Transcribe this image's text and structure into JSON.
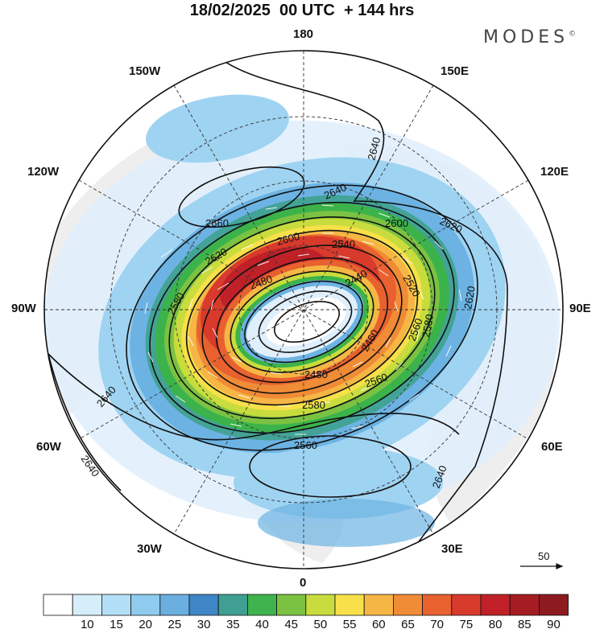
{
  "header": {
    "title": "18/02/2025  00 UTC  + 144 hrs",
    "brand": "MODES",
    "brand_mark": "©"
  },
  "map": {
    "projection": "north polar stereographic",
    "longitude_labels": {
      "top": "180",
      "bottom": "0",
      "left": "90W",
      "right": "90E",
      "upper_left_1": "150W",
      "upper_left_2": "120W",
      "upper_right_1": "150E",
      "upper_right_2": "120E",
      "lower_left_1": "60W",
      "lower_left_2": "30W",
      "lower_right_1": "60E",
      "lower_right_2": "30E"
    },
    "contour_labels": [
      "2640",
      "2660",
      "2640",
      "2620",
      "2600",
      "2620",
      "2540",
      "2580",
      "2600",
      "2440",
      "2520",
      "2480",
      "2620",
      "2460",
      "2560",
      "2580",
      "2480",
      "2560",
      "2640",
      "2580",
      "2560",
      "2640",
      "2640"
    ],
    "reference_vector": {
      "label": "50"
    },
    "shading_colors": [
      "#f2f2f2",
      "#dfeffb",
      "#9fd3f2",
      "#6cb3e3",
      "#3f86c7",
      "#43a396",
      "#3cb34a",
      "#7cc242",
      "#c9dc3d",
      "#f7e04a",
      "#f6b645",
      "#f08b36",
      "#e8612f",
      "#d83a2c",
      "#c02128",
      "#a51c22",
      "#8c1a1f"
    ]
  },
  "colorbar": {
    "labels": [
      "10",
      "15",
      "20",
      "25",
      "30",
      "35",
      "40",
      "45",
      "50",
      "55",
      "60",
      "65",
      "70",
      "75",
      "80",
      "85",
      "90"
    ],
    "colors": [
      "#ffffff",
      "#d6eefa",
      "#b3dff6",
      "#8ecbee",
      "#6aafe0",
      "#3f86c7",
      "#3f9f93",
      "#3fb34d",
      "#7cc242",
      "#c9dc3d",
      "#f7e04a",
      "#f6b645",
      "#f08b36",
      "#e8612f",
      "#d83a2c",
      "#c02128",
      "#a51c22",
      "#8c1a1f"
    ]
  }
}
